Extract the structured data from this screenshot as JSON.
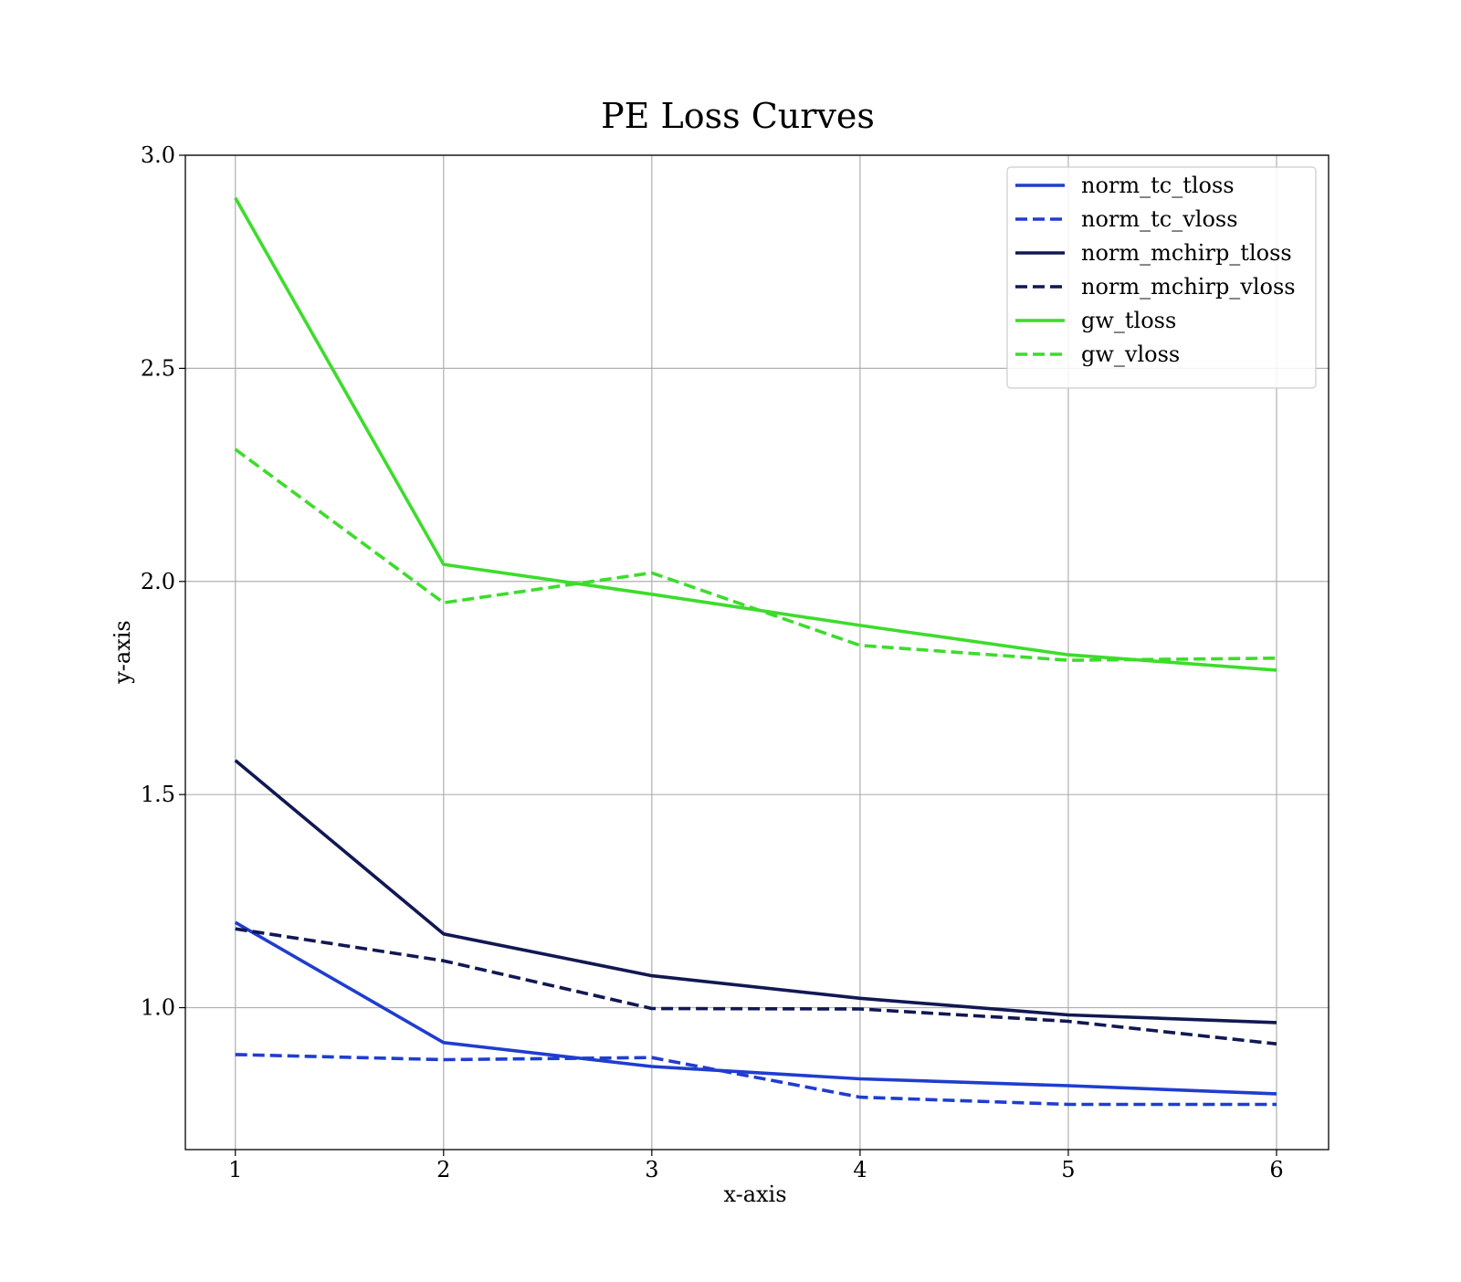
{
  "chart_data": {
    "type": "line",
    "title": "PE Loss Curves",
    "xlabel": "x-axis",
    "ylabel": "y-axis",
    "xlim": [
      0.76,
      6.25
    ],
    "ylim": [
      0.667,
      3.0
    ],
    "xticks": [
      1,
      2,
      3,
      4,
      5,
      6
    ],
    "yticks": [
      1.0,
      1.5,
      2.0,
      2.5,
      3.0
    ],
    "ytick_labels": [
      "1.0",
      "1.5",
      "2.0",
      "2.5",
      "3.0"
    ],
    "grid": true,
    "legend_position": "top-right",
    "x": [
      1,
      2,
      3,
      4,
      5,
      6
    ],
    "series": [
      {
        "name": "norm_tc_tloss",
        "color": "#1f3dcf",
        "dash": "solid",
        "values": [
          1.2,
          0.918,
          0.862,
          0.833,
          0.817,
          0.798
        ]
      },
      {
        "name": "norm_tc_vloss",
        "color": "#1f3dcf",
        "dash": "dashed",
        "values": [
          0.89,
          0.878,
          0.883,
          0.79,
          0.773,
          0.773
        ]
      },
      {
        "name": "norm_mchirp_tloss",
        "color": "#111852",
        "dash": "solid",
        "values": [
          1.58,
          1.173,
          1.075,
          1.022,
          0.983,
          0.965
        ]
      },
      {
        "name": "norm_mchirp_vloss",
        "color": "#111852",
        "dash": "dashed",
        "values": [
          1.185,
          1.11,
          0.998,
          0.997,
          0.968,
          0.915
        ]
      },
      {
        "name": "gw_tloss",
        "color": "#3ddc2c",
        "dash": "solid",
        "values": [
          2.9,
          2.04,
          1.97,
          1.897,
          1.828,
          1.792
        ]
      },
      {
        "name": "gw_vloss",
        "color": "#3ddc2c",
        "dash": "dashed",
        "values": [
          2.31,
          1.95,
          2.02,
          1.85,
          1.815,
          1.82
        ]
      }
    ]
  }
}
